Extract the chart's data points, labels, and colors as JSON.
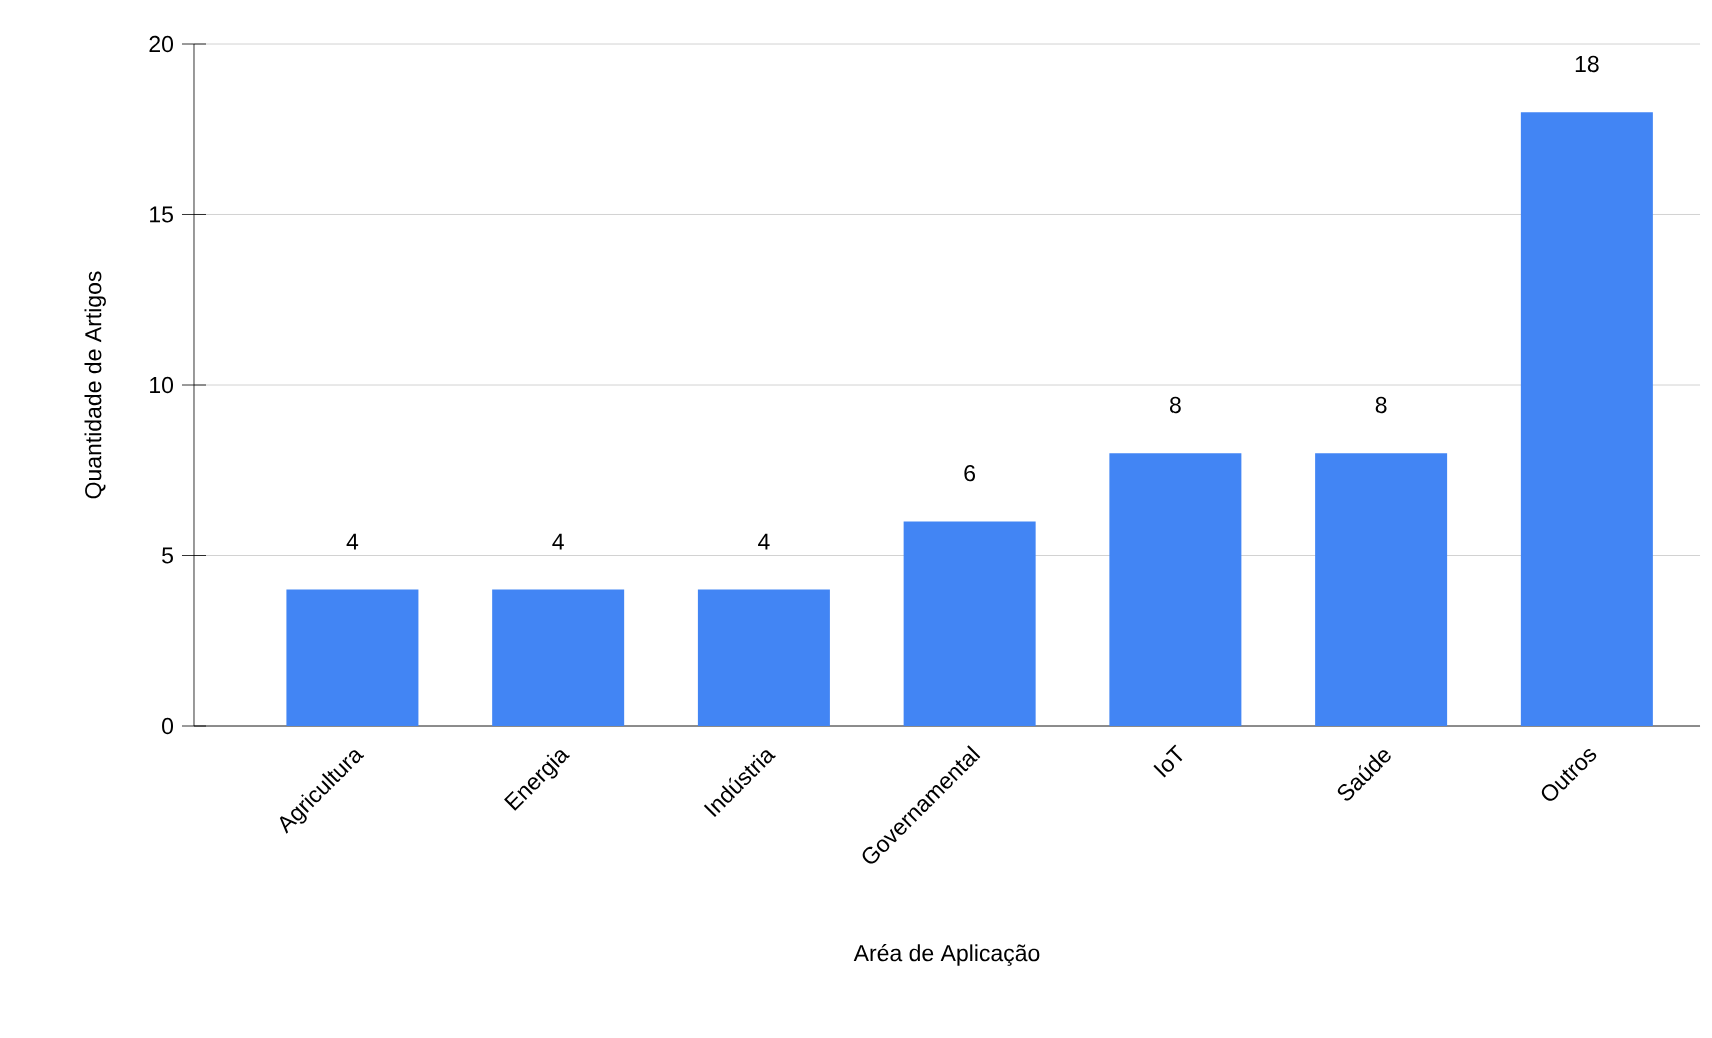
{
  "chart_data": {
    "type": "bar",
    "xlabel": "Aréa de Aplicação",
    "ylabel": "Quantidade de Artigos",
    "categories": [
      "Agricultura",
      "Energia",
      "Indústria",
      "Governamental",
      "IoT",
      "Saúde",
      "Outros"
    ],
    "values": [
      4,
      4,
      4,
      6,
      8,
      8,
      18
    ],
    "color": "#4285f4",
    "ylim": [
      0,
      20
    ],
    "yticks": [
      0,
      5,
      10,
      15,
      20
    ],
    "grid": "y",
    "data_labels": true
  }
}
